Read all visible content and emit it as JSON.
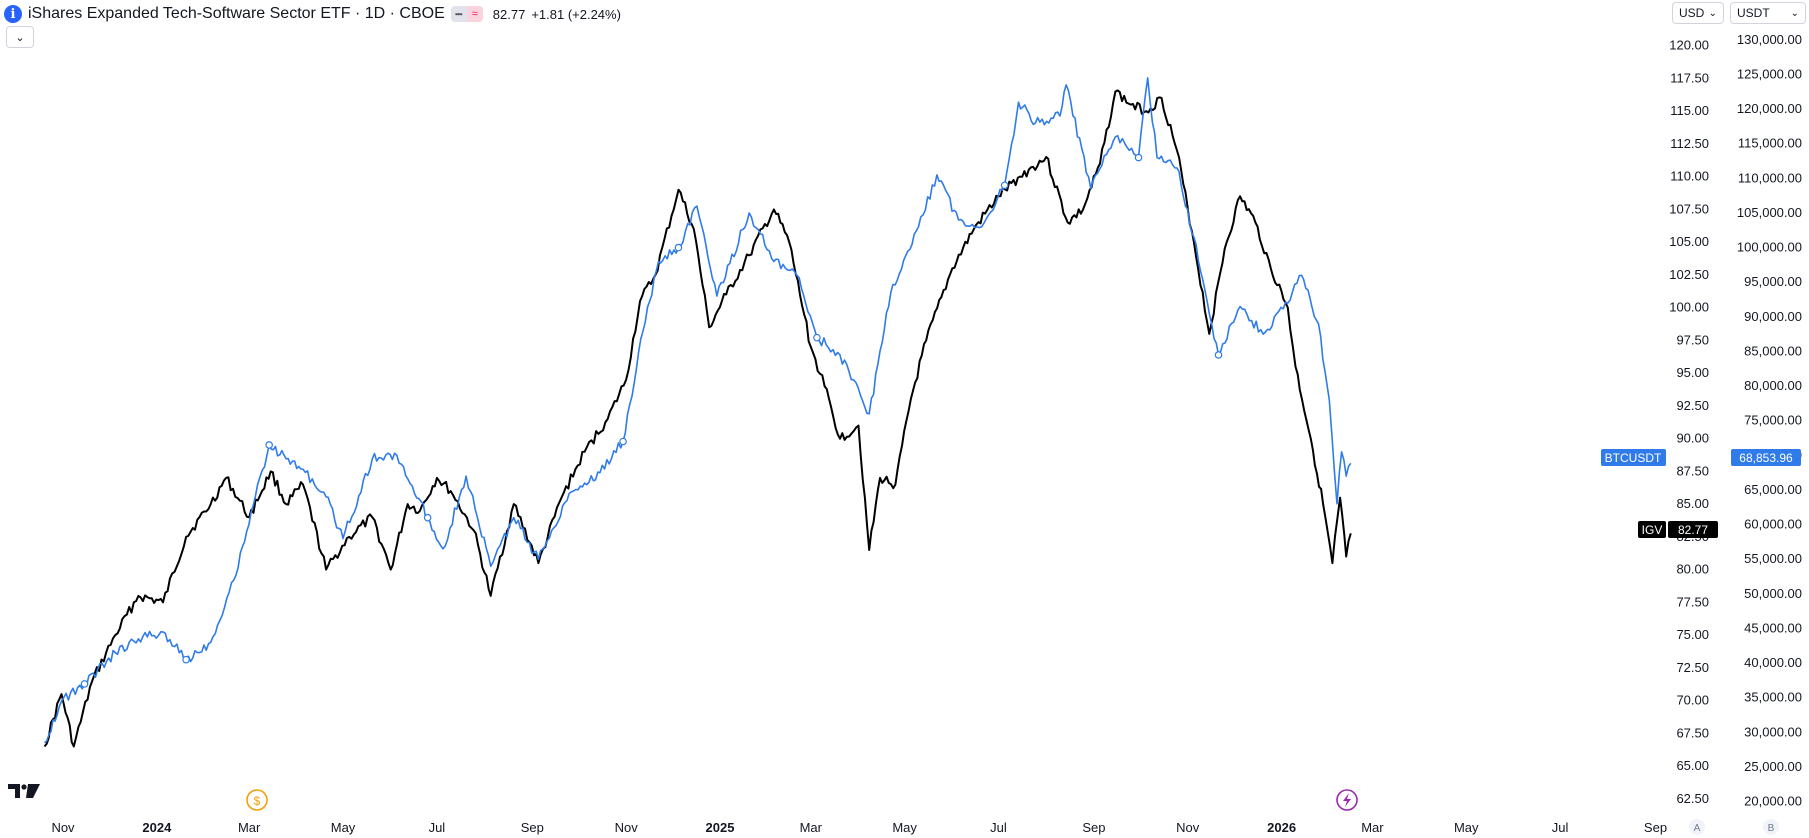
{
  "header": {
    "symbol_icon": "i",
    "title": "iShares Expanded Tech-Software Sector ETF · 1D · CBOE",
    "price": "82.77",
    "change": "+1.81 (+2.24%)"
  },
  "controls": {
    "left_currency": "USD",
    "right_currency": "USDT",
    "collapse_icon": "chevron-down-icon"
  },
  "colors": {
    "igv": "#000000",
    "btc": "#2f7be9",
    "btc_label_bg": "#2f7be9",
    "igv_label_bg": "#000000",
    "event_dividend": "#f59e0b",
    "event_flash": "#9c27b0"
  },
  "labels": {
    "btc_symbol": "BTCUSDT",
    "btc_price": "68,853.96",
    "igv_symbol": "IGV",
    "igv_price": "82.77",
    "x_extra_a": "A",
    "x_extra_b": "B"
  },
  "chart_data": {
    "type": "line",
    "x_ticks": [
      {
        "label": "Nov",
        "bold": false
      },
      {
        "label": "2024",
        "bold": true
      },
      {
        "label": "Mar",
        "bold": false
      },
      {
        "label": "May",
        "bold": false
      },
      {
        "label": "Jul",
        "bold": false
      },
      {
        "label": "Sep",
        "bold": false
      },
      {
        "label": "Nov",
        "bold": false
      },
      {
        "label": "2025",
        "bold": true
      },
      {
        "label": "Mar",
        "bold": false
      },
      {
        "label": "May",
        "bold": false
      },
      {
        "label": "Jul",
        "bold": false
      },
      {
        "label": "Sep",
        "bold": false
      },
      {
        "label": "Nov",
        "bold": false
      },
      {
        "label": "2026",
        "bold": true
      },
      {
        "label": "Mar",
        "bold": false
      },
      {
        "label": "May",
        "bold": false
      },
      {
        "label": "Jul",
        "bold": false
      },
      {
        "label": "Sep",
        "bold": false
      }
    ],
    "left_axis": {
      "ticks": [
        "120.00",
        "117.50",
        "115.00",
        "112.50",
        "110.00",
        "107.50",
        "105.00",
        "102.50",
        "100.00",
        "97.50",
        "95.00",
        "92.50",
        "90.00",
        "87.50",
        "85.00",
        "82.50",
        "80.00",
        "77.50",
        "75.00",
        "72.50",
        "70.00",
        "67.50",
        "65.00",
        "62.50"
      ],
      "range": [
        61.5,
        121.5
      ]
    },
    "right_axis": {
      "ticks": [
        "130,000.00",
        "125,000.00",
        "120,000.00",
        "115,000.00",
        "110,000.00",
        "105,000.00",
        "100,000.00",
        "95,000.00",
        "90,000.00",
        "85,000.00",
        "80,000.00",
        "75,000.00",
        "70,000.00",
        "65,000.00",
        "60,000.00",
        "55,000.00",
        "50,000.00",
        "45,000.00",
        "40,000.00",
        "35,000.00",
        "30,000.00",
        "25,000.00",
        "20,000.00"
      ],
      "range": [
        18500,
        132000
      ]
    },
    "series": [
      {
        "name": "IGV",
        "color": "#000000",
        "values": [
          [
            "2023-10-20",
            66.5
          ],
          [
            "2023-10-31",
            70.5
          ],
          [
            "2023-11-08",
            66.5
          ],
          [
            "2023-11-20",
            71.5
          ],
          [
            "2023-12-05",
            75.0
          ],
          [
            "2023-12-20",
            78.0
          ],
          [
            "2024-01-05",
            77.5
          ],
          [
            "2024-01-20",
            82.5
          ],
          [
            "2024-02-05",
            85.0
          ],
          [
            "2024-02-15",
            87.0
          ],
          [
            "2024-03-01",
            84.0
          ],
          [
            "2024-03-15",
            87.5
          ],
          [
            "2024-03-25",
            85.0
          ],
          [
            "2024-04-05",
            86.5
          ],
          [
            "2024-04-20",
            80.0
          ],
          [
            "2024-05-05",
            82.5
          ],
          [
            "2024-05-20",
            84.0
          ],
          [
            "2024-06-01",
            80.0
          ],
          [
            "2024-06-12",
            85.0
          ],
          [
            "2024-06-20",
            84.5
          ],
          [
            "2024-07-01",
            87.0
          ],
          [
            "2024-07-10",
            86.0
          ],
          [
            "2024-07-25",
            83.0
          ],
          [
            "2024-08-05",
            78.0
          ],
          [
            "2024-08-20",
            85.0
          ],
          [
            "2024-09-05",
            80.5
          ],
          [
            "2024-09-20",
            85.5
          ],
          [
            "2024-10-05",
            89.0
          ],
          [
            "2024-10-20",
            91.5
          ],
          [
            "2024-11-01",
            94.5
          ],
          [
            "2024-11-10",
            100.5
          ],
          [
            "2024-11-20",
            102.5
          ],
          [
            "2024-12-05",
            109.0
          ],
          [
            "2024-12-15",
            106.0
          ],
          [
            "2024-12-25",
            98.5
          ],
          [
            "2025-01-05",
            101.0
          ],
          [
            "2025-01-20",
            104.0
          ],
          [
            "2025-02-05",
            107.5
          ],
          [
            "2025-02-15",
            105.0
          ],
          [
            "2025-03-01",
            97.0
          ],
          [
            "2025-03-10",
            94.0
          ],
          [
            "2025-03-20",
            90.0
          ],
          [
            "2025-04-01",
            91.0
          ],
          [
            "2025-04-08",
            81.5
          ],
          [
            "2025-04-15",
            87.0
          ],
          [
            "2025-04-25",
            86.5
          ],
          [
            "2025-05-05",
            93.0
          ],
          [
            "2025-05-15",
            97.5
          ],
          [
            "2025-06-01",
            103.0
          ],
          [
            "2025-06-15",
            106.0
          ],
          [
            "2025-07-01",
            108.5
          ],
          [
            "2025-07-15",
            110.0
          ],
          [
            "2025-08-01",
            111.5
          ],
          [
            "2025-08-15",
            106.5
          ],
          [
            "2025-08-25",
            107.5
          ],
          [
            "2025-09-05",
            111.0
          ],
          [
            "2025-09-15",
            116.5
          ],
          [
            "2025-09-25",
            115.5
          ],
          [
            "2025-10-05",
            115.0
          ],
          [
            "2025-10-15",
            116.0
          ],
          [
            "2025-10-25",
            112.0
          ],
          [
            "2025-11-05",
            105.0
          ],
          [
            "2025-11-15",
            98.0
          ],
          [
            "2025-11-25",
            104.5
          ],
          [
            "2025-12-05",
            108.5
          ],
          [
            "2025-12-15",
            106.5
          ],
          [
            "2025-12-25",
            103.0
          ],
          [
            "2026-01-05",
            100.0
          ],
          [
            "2026-01-10",
            95.5
          ],
          [
            "2026-01-20",
            90.0
          ],
          [
            "2026-01-28",
            85.0
          ],
          [
            "2026-02-03",
            80.5
          ],
          [
            "2026-02-08",
            85.5
          ],
          [
            "2026-02-12",
            81.0
          ],
          [
            "2026-02-15",
            82.77
          ]
        ]
      },
      {
        "name": "BTCUSDT",
        "color": "#2f7be9",
        "values": [
          [
            "2023-10-20",
            28500
          ],
          [
            "2023-10-31",
            34500
          ],
          [
            "2023-11-15",
            37000
          ],
          [
            "2023-12-05",
            41500
          ],
          [
            "2023-12-20",
            43500
          ],
          [
            "2024-01-05",
            44500
          ],
          [
            "2024-01-20",
            40500
          ],
          [
            "2024-02-05",
            43000
          ],
          [
            "2024-02-20",
            52000
          ],
          [
            "2024-03-05",
            64000
          ],
          [
            "2024-03-14",
            71500
          ],
          [
            "2024-03-25",
            69500
          ],
          [
            "2024-04-05",
            68000
          ],
          [
            "2024-04-20",
            64000
          ],
          [
            "2024-05-01",
            58000
          ],
          [
            "2024-05-20",
            69500
          ],
          [
            "2024-06-05",
            70000
          ],
          [
            "2024-06-25",
            61000
          ],
          [
            "2024-07-05",
            56500
          ],
          [
            "2024-07-20",
            67000
          ],
          [
            "2024-08-05",
            54000
          ],
          [
            "2024-08-20",
            61000
          ],
          [
            "2024-09-05",
            55000
          ],
          [
            "2024-09-25",
            64500
          ],
          [
            "2024-10-15",
            67500
          ],
          [
            "2024-10-30",
            72000
          ],
          [
            "2024-11-12",
            88000
          ],
          [
            "2024-11-22",
            98000
          ],
          [
            "2024-12-05",
            100000
          ],
          [
            "2024-12-17",
            106000
          ],
          [
            "2024-12-30",
            93000
          ],
          [
            "2025-01-20",
            105000
          ],
          [
            "2025-02-05",
            98000
          ],
          [
            "2025-02-20",
            96000
          ],
          [
            "2025-03-05",
            87000
          ],
          [
            "2025-03-20",
            84500
          ],
          [
            "2025-04-08",
            76000
          ],
          [
            "2025-04-22",
            93500
          ],
          [
            "2025-05-10",
            103000
          ],
          [
            "2025-05-22",
            110500
          ],
          [
            "2025-06-05",
            104000
          ],
          [
            "2025-06-20",
            103000
          ],
          [
            "2025-07-05",
            109000
          ],
          [
            "2025-07-14",
            121000
          ],
          [
            "2025-07-25",
            118000
          ],
          [
            "2025-08-10",
            119000
          ],
          [
            "2025-08-14",
            123500
          ],
          [
            "2025-08-30",
            108500
          ],
          [
            "2025-09-15",
            116000
          ],
          [
            "2025-09-30",
            113000
          ],
          [
            "2025-10-06",
            124500
          ],
          [
            "2025-10-12",
            113000
          ],
          [
            "2025-10-25",
            111500
          ],
          [
            "2025-11-05",
            101500
          ],
          [
            "2025-11-21",
            84500
          ],
          [
            "2025-12-05",
            91500
          ],
          [
            "2025-12-20",
            87500
          ],
          [
            "2026-01-05",
            92000
          ],
          [
            "2026-01-14",
            96000
          ],
          [
            "2026-01-25",
            89000
          ],
          [
            "2026-02-01",
            78000
          ],
          [
            "2026-02-06",
            63000
          ],
          [
            "2026-02-09",
            70500
          ],
          [
            "2026-02-12",
            67000
          ],
          [
            "2026-02-15",
            68853.96
          ]
        ]
      }
    ]
  }
}
